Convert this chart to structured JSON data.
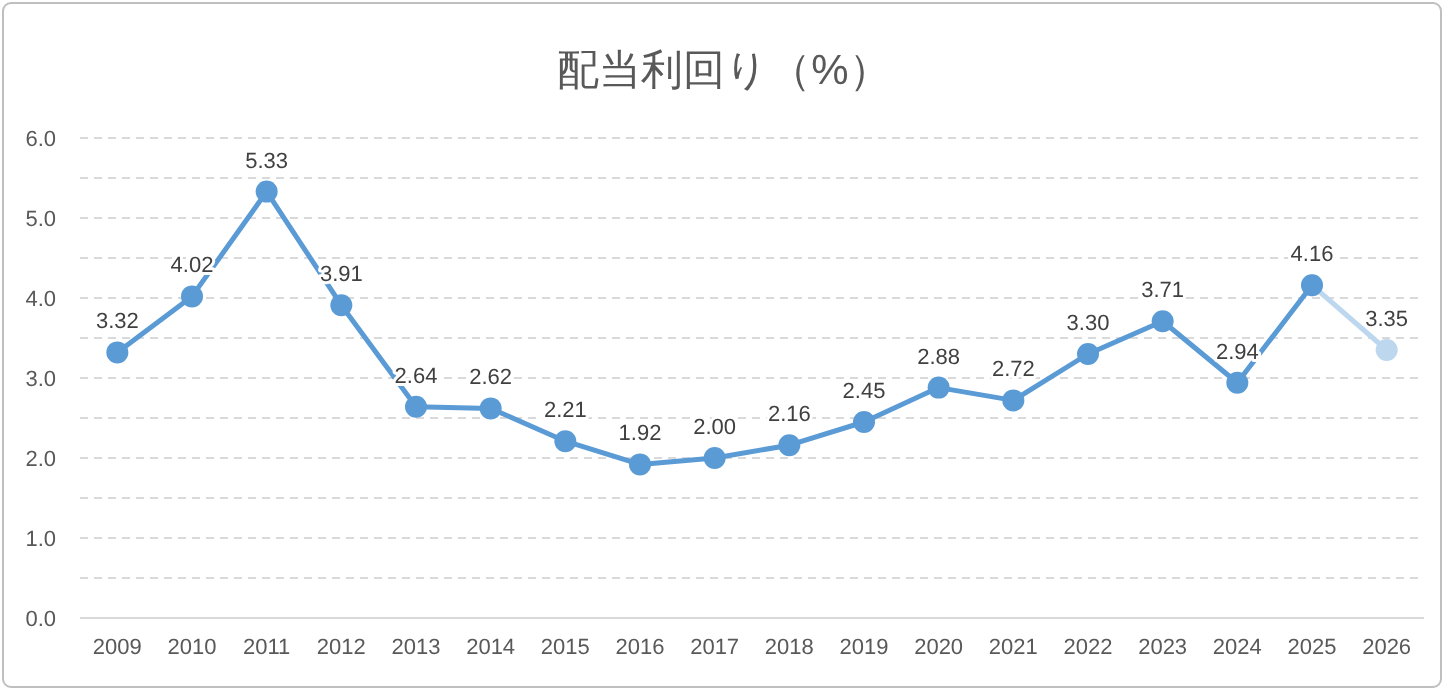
{
  "chart_data": {
    "type": "line",
    "title": "配当利回り（%）",
    "categories": [
      "2009",
      "2010",
      "2011",
      "2012",
      "2013",
      "2014",
      "2015",
      "2016",
      "2017",
      "2018",
      "2019",
      "2020",
      "2021",
      "2022",
      "2023",
      "2024",
      "2025",
      "2026"
    ],
    "series": [
      {
        "color": "#5b9bd5",
        "values": [
          3.32,
          4.02,
          5.33,
          3.91,
          2.64,
          2.62,
          2.21,
          1.92,
          2.0,
          2.16,
          2.45,
          2.88,
          2.72,
          3.3,
          3.71,
          2.94,
          4.16,
          null
        ],
        "value_labels": [
          "3.32",
          "4.02",
          "5.33",
          "3.91",
          "2.64",
          "2.62",
          "2.21",
          "1.92",
          "2.00",
          "2.16",
          "2.45",
          "2.88",
          "2.72",
          "3.30",
          "3.71",
          "2.94",
          "4.16",
          null
        ]
      },
      {
        "color": "#bdd7ee",
        "values": [
          null,
          null,
          null,
          null,
          null,
          null,
          null,
          null,
          null,
          null,
          null,
          null,
          null,
          null,
          null,
          null,
          4.16,
          3.35
        ],
        "value_labels": [
          null,
          null,
          null,
          null,
          null,
          null,
          null,
          null,
          null,
          null,
          null,
          null,
          null,
          null,
          null,
          null,
          null,
          "3.35"
        ]
      }
    ],
    "ylim": [
      0,
      6
    ],
    "yticks": [
      {
        "value": 0,
        "label": "0.0"
      },
      {
        "value": 0.5,
        "label": null
      },
      {
        "value": 1,
        "label": "1.0"
      },
      {
        "value": 1.5,
        "label": null
      },
      {
        "value": 2,
        "label": "2.0"
      },
      {
        "value": 2.5,
        "label": null
      },
      {
        "value": 3,
        "label": "3.0"
      },
      {
        "value": 3.5,
        "label": null
      },
      {
        "value": 4,
        "label": "4.0"
      },
      {
        "value": 4.5,
        "label": null
      },
      {
        "value": 5,
        "label": "5.0"
      },
      {
        "value": 5.5,
        "label": null
      },
      {
        "value": 6,
        "label": "6.0"
      }
    ],
    "grid": "y",
    "marker": "circle",
    "line_style": "solid"
  }
}
